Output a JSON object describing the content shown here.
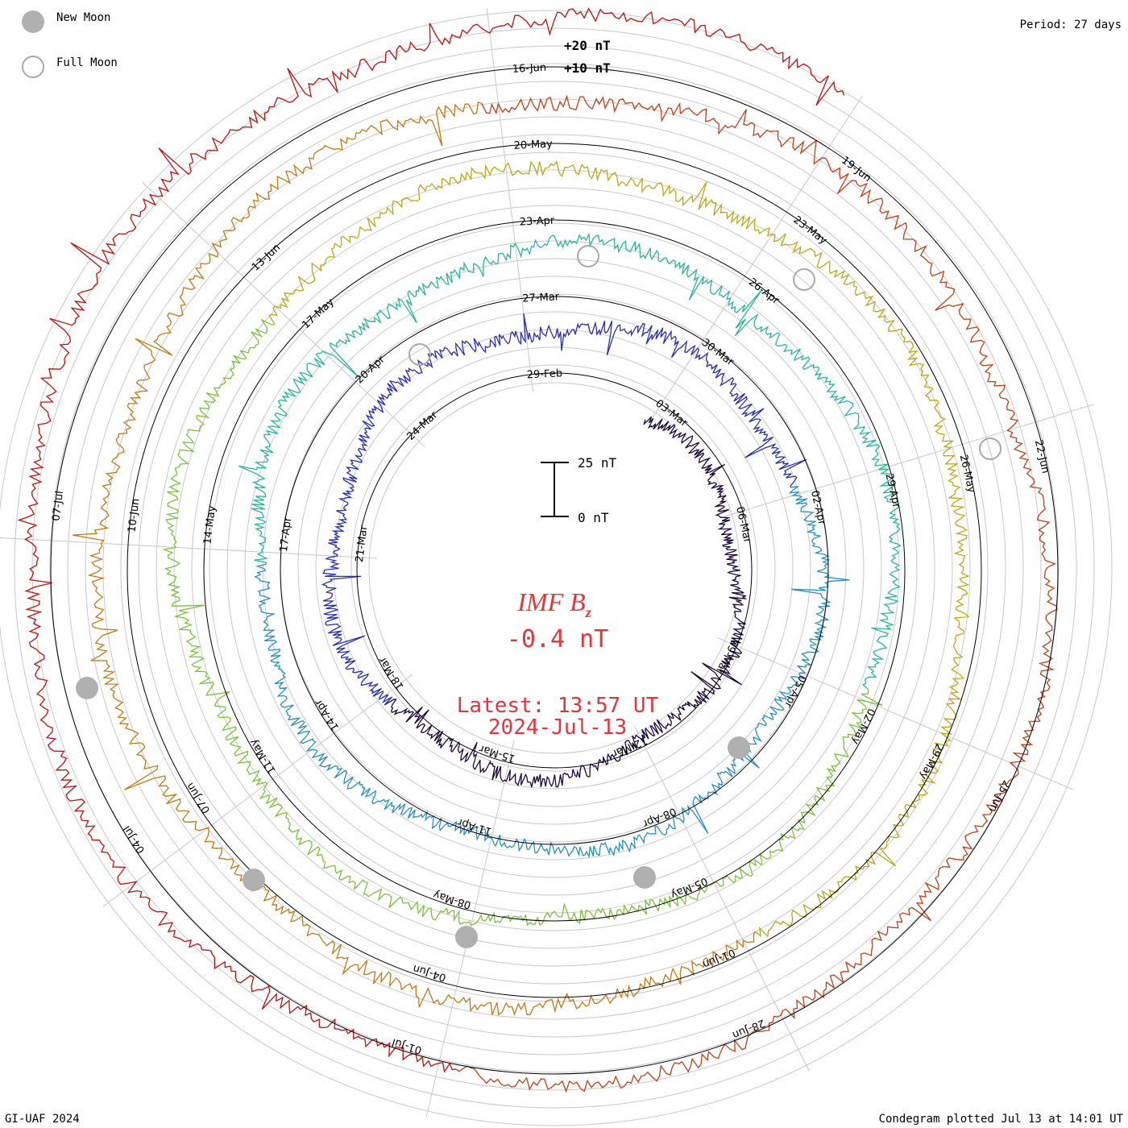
{
  "legend": {
    "new_moon_label": "New Moon",
    "full_moon_label": "Full Moon",
    "new_moon_color": "#b0b0b0",
    "full_moon_color": "#a8a8a8"
  },
  "period_label": "Period: 27 days",
  "scale": {
    "top_label": "25 nT",
    "bottom_label": "0 nT"
  },
  "ring_scale": {
    "upper": "+20 nT",
    "lower": "+10 nT"
  },
  "center": {
    "quantity": "IMF B",
    "subscript": "z",
    "value": "-0.4 nT",
    "latest_line": "Latest: 13:57 UT",
    "date_line": "2024-Jul-13",
    "text_color": "#e8333a"
  },
  "footer": {
    "credit": "GI-UAF 2024",
    "plotted": "Condegram plotted Jul 13 at 14:01 UT"
  },
  "chart_data": {
    "type": "line",
    "subtype": "condegram-spiral",
    "period_days": 27,
    "start_date": "2024-02-29",
    "end_date": "2024-07-13",
    "latest_value_nT": -0.4,
    "latest_time": "13:57 UT",
    "rings": [
      {
        "label_dates": [
          "29-Feb",
          "03-Mar",
          "06-Mar",
          "09-Mar",
          "12-Mar",
          "15-Mar",
          "18-Mar",
          "21-Mar",
          "24-Mar"
        ],
        "color": "#1a0a3a"
      },
      {
        "label_dates": [
          "27-Mar",
          "30-Mar",
          "02-Apr",
          "05-Apr",
          "08-Apr",
          "11-Apr",
          "14-Apr",
          "17-Apr",
          "20-Apr"
        ],
        "color": "#2b2fb0"
      },
      {
        "label_dates": [
          "23-Apr",
          "26-Apr",
          "29-Apr",
          "02-May",
          "05-May",
          "08-May",
          "11-May",
          "14-May",
          "17-May"
        ],
        "color": "#2aa3b5"
      },
      {
        "label_dates": [
          "20-May",
          "23-May",
          "26-May",
          "29-May",
          "01-Jun",
          "04-Jun",
          "07-Jun",
          "10-Jun",
          "13-Jun"
        ],
        "color": "#7dc040"
      },
      {
        "label_dates": [
          "16-Jun",
          "19-Jun",
          "22-Jun",
          "25-Jun",
          "28-Jun",
          "01-Jul",
          "04-Jul",
          "07-Jul"
        ],
        "color": "#c07a1a"
      }
    ],
    "colors": [
      "#1a0a3a",
      "#2b2fb0",
      "#2a8fc0",
      "#2ab59a",
      "#7dc040",
      "#b8a81a",
      "#c07a1a",
      "#c0401a",
      "#c01010"
    ],
    "new_moon_dates": [
      "09-Mar",
      "08-Apr",
      "08-May",
      "06-Jun",
      "06-Jul"
    ],
    "full_moon_dates": [
      "25-Mar",
      "23-Apr",
      "23-May",
      "22-Jun"
    ]
  }
}
